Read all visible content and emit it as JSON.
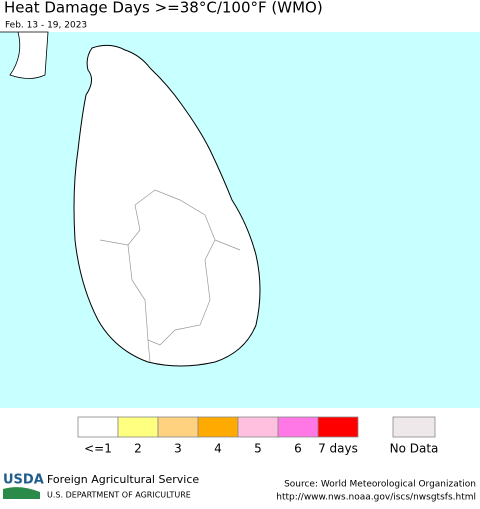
{
  "header": {
    "title": "Heat Damage Days >=38°C/100°F (WMO)",
    "subtitle": "Feb. 13 - 19, 2023"
  },
  "legend": {
    "items": [
      {
        "label": "<=1",
        "color": "#ffffff"
      },
      {
        "label": "2",
        "color": "#ffff80"
      },
      {
        "label": "3",
        "color": "#ffd280"
      },
      {
        "label": "4",
        "color": "#ffaa00"
      },
      {
        "label": "5",
        "color": "#ffc0e0"
      },
      {
        "label": "6",
        "color": "#ff78e6"
      },
      {
        "label": "7 days",
        "color": "#ff0000"
      }
    ],
    "no_data": {
      "label": "No Data",
      "color": "#efe8ea"
    }
  },
  "footer": {
    "logo": "USDA",
    "org": "Foreign Agricultural Service",
    "dept": "U.S. DEPARTMENT OF AGRICULTURE",
    "source": "Source: World Meteorological Organization",
    "url": "http://www.nws.noaa.gov/iscs/nwsgtsfs.html"
  }
}
